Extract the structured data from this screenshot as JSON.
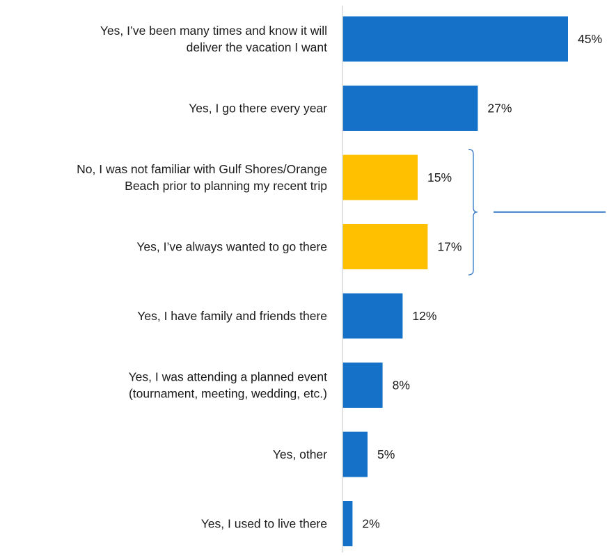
{
  "chart_data": {
    "type": "bar",
    "orientation": "horizontal",
    "categories": [
      [
        "Yes, I’ve been many times and know it will",
        "deliver the vacation I want"
      ],
      [
        "Yes, I go there every year"
      ],
      [
        "No, I was not familiar with Gulf Shores/Orange",
        "Beach prior to planning my recent trip"
      ],
      [
        "Yes, I’ve always wanted to go there"
      ],
      [
        "Yes, I have family and friends there"
      ],
      [
        "Yes, I was attending a planned event",
        "(tournament,   meeting, wedding, etc.)"
      ],
      [
        "Yes, other"
      ],
      [
        "Yes, I used to live there"
      ]
    ],
    "values": [
      45,
      27,
      15,
      17,
      12,
      8,
      5,
      2
    ],
    "value_labels": [
      "45%",
      "27%",
      "15%",
      "17%",
      "12%",
      "8%",
      "5%",
      "2%"
    ],
    "highlighted": [
      false,
      false,
      true,
      true,
      false,
      false,
      false,
      false
    ],
    "colors": {
      "default": "#1570C8",
      "highlight": "#FFC000",
      "bracket": "#2E75C6",
      "axis": "#D9D9D9"
    },
    "bracket_group": [
      2,
      3
    ],
    "xlim": [
      0,
      50
    ],
    "grid": false,
    "legend": "none"
  }
}
